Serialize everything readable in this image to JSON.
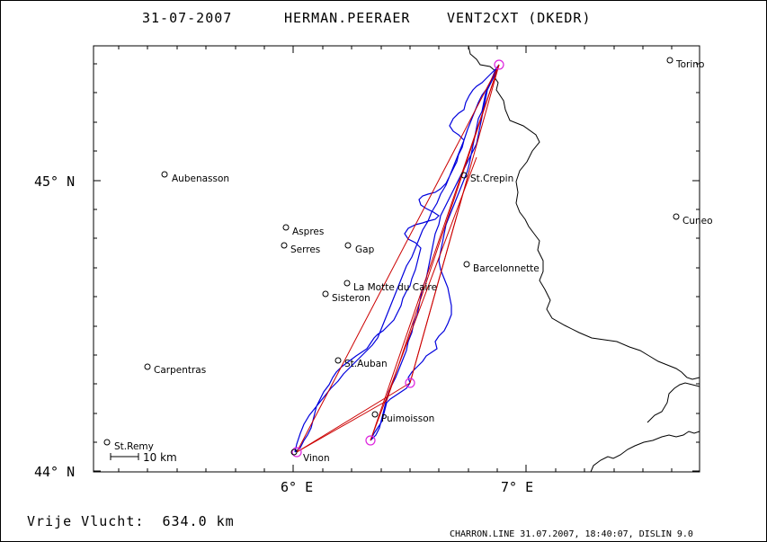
{
  "header": {
    "date": "31-07-2007",
    "pilot": "HERMAN.PEERAER",
    "glider": "VENT2CXT (DKEDR)"
  },
  "axes": {
    "lat_labels": [
      "45° N",
      "44° N"
    ],
    "lon_labels": [
      "6° E",
      "7° E"
    ]
  },
  "towns": [
    {
      "name": "Torino"
    },
    {
      "name": "Aubenasson"
    },
    {
      "name": "St.Crepin"
    },
    {
      "name": "Cuneo"
    },
    {
      "name": "Aspres"
    },
    {
      "name": "Serres"
    },
    {
      "name": "Gap"
    },
    {
      "name": "Barcelonnette"
    },
    {
      "name": "La Motte du Caire"
    },
    {
      "name": "Sisteron"
    },
    {
      "name": "Carpentras"
    },
    {
      "name": "St.Auban"
    },
    {
      "name": "Puimoisson"
    },
    {
      "name": "St.Remy"
    },
    {
      "name": "Vinon"
    }
  ],
  "scale_bar": {
    "label": "10 km"
  },
  "footer": {
    "distance": "Vrije Vlucht:  634.0 km",
    "credit": "CHARRON.LINE 31.07.2007, 18:40:07, DISLIN 9.0"
  },
  "colors": {
    "track": "#0000dd",
    "task": "#cc0000",
    "turnpoint": "#dd22dd",
    "border": "#000000"
  }
}
